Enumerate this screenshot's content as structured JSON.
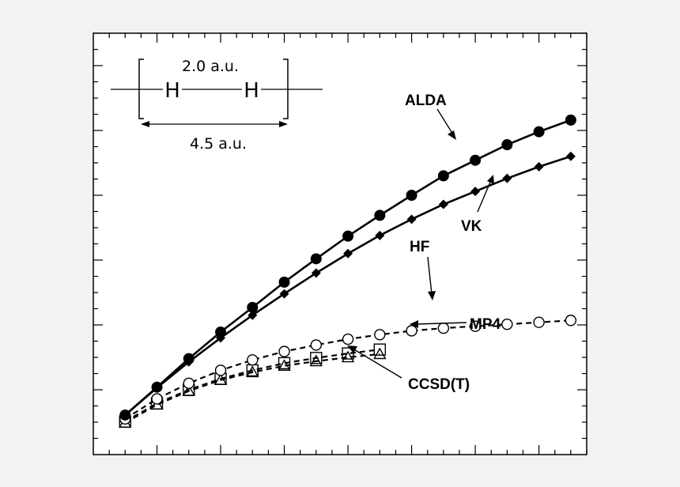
{
  "chart_data": {
    "type": "line",
    "title": "",
    "xlabel": "",
    "ylabel": "",
    "xlim": [
      0,
      15.5
    ],
    "ylim": [
      0,
      6.5
    ],
    "grid": false,
    "series": [
      {
        "name": "ALDA",
        "style": "solid",
        "marker": "filled-circle",
        "x": [
          1,
          2,
          3,
          4,
          5,
          6,
          7,
          8,
          9,
          10,
          11,
          12,
          13,
          14,
          15
        ],
        "y": [
          0.61,
          1.04,
          1.48,
          1.89,
          2.27,
          2.66,
          3.02,
          3.37,
          3.69,
          4.0,
          4.3,
          4.54,
          4.78,
          4.98,
          5.16
        ]
      },
      {
        "name": "VK",
        "style": "solid",
        "marker": "filled-diamond",
        "x": [
          1,
          2,
          3,
          4,
          5,
          6,
          7,
          8,
          9,
          10,
          11,
          12,
          13,
          14,
          15
        ],
        "y": [
          0.61,
          1.03,
          1.43,
          1.8,
          2.15,
          2.48,
          2.8,
          3.1,
          3.38,
          3.63,
          3.86,
          4.06,
          4.26,
          4.44,
          4.6
        ]
      },
      {
        "name": "HF",
        "style": "dashed",
        "marker": "open-circle",
        "x": [
          1,
          2,
          3,
          4,
          5,
          6,
          7,
          8,
          9,
          10,
          11,
          12,
          13,
          14,
          15
        ],
        "y": [
          0.55,
          0.86,
          1.1,
          1.3,
          1.46,
          1.59,
          1.69,
          1.78,
          1.85,
          1.91,
          1.95,
          1.98,
          2.01,
          2.04,
          2.07
        ]
      },
      {
        "name": "MP4",
        "style": "dashed",
        "marker": "open-square",
        "x": [
          1,
          2,
          3,
          4,
          5,
          6,
          7,
          8,
          9
        ],
        "y": [
          0.51,
          0.79,
          1.0,
          1.17,
          1.3,
          1.41,
          1.49,
          1.56,
          1.62
        ]
      },
      {
        "name": "CCSD(T)",
        "style": "dashed",
        "marker": "open-triangle",
        "x": [
          1,
          2,
          3,
          4,
          5,
          6,
          7,
          8,
          9
        ],
        "y": [
          0.49,
          0.77,
          0.98,
          1.15,
          1.27,
          1.37,
          1.44,
          1.5,
          1.55
        ]
      }
    ],
    "annotations": [
      {
        "text": "ALDA",
        "series": "ALDA"
      },
      {
        "text": "VK",
        "series": "VK"
      },
      {
        "text": "HF",
        "series": "HF"
      },
      {
        "text": "MP4",
        "series": "MP4"
      },
      {
        "text": "CCSD(T)",
        "series": "CCSD(T)"
      }
    ],
    "inset": {
      "atom_left": "H",
      "atom_right": "H",
      "bond_label": "2.0 a.u.",
      "span_label": "4.5 a.u."
    }
  },
  "colors": {
    "background": "#f2f2f2",
    "plot": "#ffffff",
    "ink": "#000000"
  }
}
